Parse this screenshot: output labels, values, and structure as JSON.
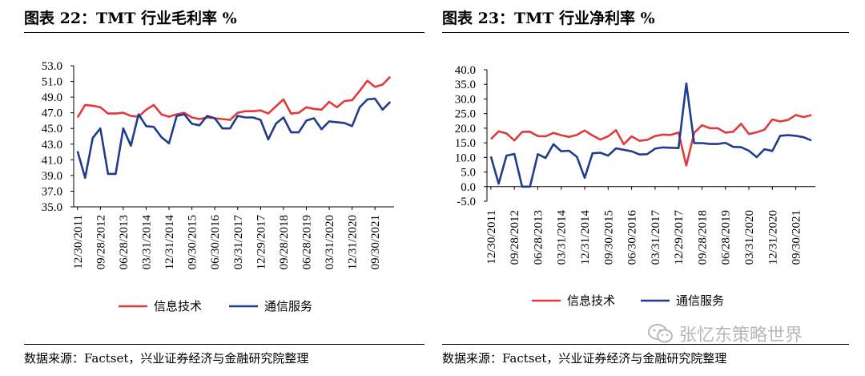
{
  "charts": [
    {
      "title": "图表 22：TMT 行业毛利率  %",
      "source": "数据来源：Factset，兴业证券经济与金融研究院整理",
      "chart_data": {
        "type": "line",
        "title": "图表 22：TMT 行业毛利率  %",
        "ylim": [
          35.0,
          53.0
        ],
        "yticks": [
          "53.0",
          "51.0",
          "49.0",
          "47.0",
          "45.0",
          "43.0",
          "41.0",
          "39.0",
          "37.0",
          "35.0"
        ],
        "x_tick_labels": [
          "12/30/2011",
          "09/28/2012",
          "06/28/2013",
          "03/31/2014",
          "12/31/2014",
          "09/30/2015",
          "06/30/2016",
          "03/31/2017",
          "12/29/2017",
          "09/28/2018",
          "06/28/2019",
          "03/31/2020",
          "12/31/2020",
          "09/30/2021"
        ],
        "x_tick_positions": [
          0,
          3,
          6,
          9,
          12,
          15,
          18,
          21,
          24,
          27,
          30,
          33,
          36,
          39
        ],
        "n_points": 42,
        "grid": false,
        "legend_position": "bottom",
        "series": [
          {
            "name": "信息技术",
            "color": "#e03a3a",
            "values": [
              46.4,
              48.0,
              47.9,
              47.7,
              46.9,
              46.9,
              47.0,
              46.6,
              46.5,
              47.4,
              48.0,
              46.8,
              46.5,
              46.8,
              47.0,
              46.4,
              46.2,
              46.4,
              46.3,
              46.2,
              46.1,
              47.0,
              47.2,
              47.2,
              47.3,
              46.9,
              47.8,
              48.7,
              46.9,
              47.0,
              47.7,
              47.5,
              47.4,
              48.4,
              47.7,
              48.5,
              48.6,
              49.8,
              51.1,
              50.3,
              50.6,
              51.6
            ]
          },
          {
            "name": "通信服务",
            "color": "#1f3c8f",
            "values": [
              42.1,
              38.7,
              43.8,
              45.0,
              39.2,
              39.2,
              45.0,
              42.8,
              46.8,
              45.3,
              45.2,
              43.9,
              43.1,
              46.6,
              46.8,
              45.6,
              45.4,
              46.6,
              46.3,
              45.0,
              45.0,
              46.6,
              46.4,
              46.4,
              46.1,
              43.6,
              45.6,
              46.4,
              44.5,
              44.5,
              46.0,
              46.3,
              44.9,
              45.9,
              45.8,
              45.7,
              45.3,
              47.7,
              48.7,
              48.8,
              47.4,
              48.4
            ]
          }
        ]
      }
    },
    {
      "title": "图表 23：TMT 行业净利率  %",
      "source": "数据来源：Factset，兴业证券经济与金融研究院整理",
      "chart_data": {
        "type": "line",
        "title": "图表 23：TMT 行业净利率  %",
        "ylim": [
          -5.0,
          40.0
        ],
        "yticks": [
          "40.0",
          "35.0",
          "30.0",
          "25.0",
          "20.0",
          "15.0",
          "10.0",
          "5.0",
          "0.0",
          "-5.0"
        ],
        "x_tick_labels": [
          "12/30/2011",
          "09/28/2012",
          "06/28/2013",
          "03/31/2014",
          "12/31/2014",
          "09/30/2015",
          "06/30/2016",
          "03/31/2017",
          "12/29/2017",
          "09/28/2018",
          "06/28/2019",
          "03/31/2020",
          "12/31/2020",
          "09/30/2021"
        ],
        "x_tick_positions": [
          0,
          3,
          6,
          9,
          12,
          15,
          18,
          21,
          24,
          27,
          30,
          33,
          36,
          39
        ],
        "n_points": 42,
        "grid": false,
        "legend_position": "bottom",
        "series": [
          {
            "name": "信息技术",
            "color": "#e03a3a",
            "values": [
              16.3,
              18.9,
              18.2,
              15.8,
              18.7,
              18.8,
              17.3,
              17.2,
              18.4,
              17.6,
              17.0,
              17.7,
              19.2,
              17.5,
              16.1,
              17.2,
              19.3,
              14.5,
              17.2,
              15.7,
              16.0,
              17.3,
              17.8,
              17.7,
              18.5,
              7.2,
              18.4,
              21.0,
              20.0,
              20.0,
              18.5,
              18.8,
              21.5,
              18.0,
              18.6,
              19.5,
              23.0,
              22.3,
              22.8,
              24.5,
              23.8,
              24.5
            ]
          },
          {
            "name": "通信服务",
            "color": "#1f3c8f",
            "values": [
              10.3,
              1.0,
              10.6,
              11.2,
              0.0,
              0.0,
              11.1,
              9.8,
              14.5,
              12.1,
              12.3,
              10.2,
              3.0,
              11.4,
              11.6,
              10.6,
              13.1,
              12.6,
              12.1,
              11.0,
              11.1,
              13.0,
              13.4,
              13.3,
              13.2,
              35.3,
              14.9,
              14.9,
              14.6,
              14.6,
              15.0,
              13.6,
              13.5,
              12.3,
              10.1,
              12.8,
              12.2,
              17.4,
              17.6,
              17.4,
              16.9,
              15.8
            ]
          }
        ]
      }
    }
  ],
  "watermark": {
    "text": "张忆东策略世界",
    "icon": "wechat-icon"
  }
}
